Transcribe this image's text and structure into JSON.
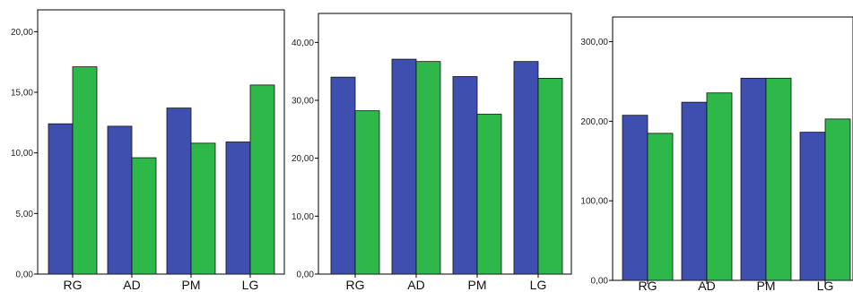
{
  "colors": {
    "series_1": "#3f4fb0",
    "series_2": "#2eb84a",
    "axis": "#000000"
  },
  "chart_data": [
    {
      "type": "bar",
      "categories": [
        "RG",
        "AD",
        "PM",
        "LG"
      ],
      "ylim": [
        0,
        21.8
      ],
      "yticks": [
        "0,00",
        "5,00",
        "10,00",
        "15,00",
        "20,00"
      ],
      "ytick_values": [
        0,
        5,
        10,
        15,
        20
      ],
      "series": [
        {
          "values": [
            12.4,
            12.2,
            13.7,
            10.9
          ]
        },
        {
          "values": [
            17.1,
            9.6,
            10.8,
            15.6
          ]
        }
      ]
    },
    {
      "type": "bar",
      "categories": [
        "RG",
        "AD",
        "PM",
        "LG"
      ],
      "ylim": [
        0,
        45
      ],
      "yticks": [
        "0,00",
        "10,00",
        "20,00",
        "30,00",
        "40,00"
      ],
      "ytick_values": [
        0,
        10,
        20,
        30,
        40
      ],
      "series": [
        {
          "values": [
            34,
            37.1,
            34.1,
            36.7
          ]
        },
        {
          "values": [
            28.2,
            36.7,
            27.6,
            33.8
          ]
        }
      ]
    },
    {
      "type": "bar",
      "categories": [
        "RG",
        "AD",
        "PM",
        "LG"
      ],
      "ylim": [
        0,
        331
      ],
      "yticks": [
        "0,00",
        "100,00",
        "200,00",
        "300,00"
      ],
      "ytick_values": [
        0,
        100,
        200,
        300
      ],
      "series": [
        {
          "values": [
            207.5,
            223.9,
            254.1,
            186.2
          ]
        },
        {
          "values": [
            184.8,
            235.6,
            254.1,
            202.8
          ]
        }
      ]
    }
  ]
}
